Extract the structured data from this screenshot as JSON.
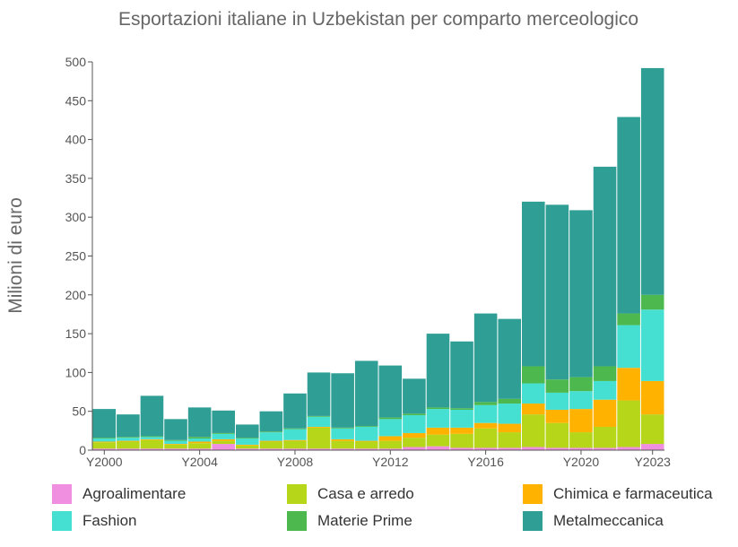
{
  "chart_data": {
    "type": "bar",
    "stacked": true,
    "title": "Esportazioni italiane in Uzbekistan per comparto merceologico",
    "xlabel": "",
    "ylabel": "Milioni di euro",
    "ylim": [
      0,
      500
    ],
    "yticks": [
      0,
      50,
      100,
      150,
      200,
      250,
      300,
      350,
      400,
      450,
      500
    ],
    "categories": [
      "Y2000",
      "Y2001",
      "Y2002",
      "Y2003",
      "Y2004",
      "Y2005",
      "Y2006",
      "Y2007",
      "Y2008",
      "Y2009",
      "Y2010",
      "Y2011",
      "Y2012",
      "Y2013",
      "Y2014",
      "Y2015",
      "Y2016",
      "Y2017",
      "Y2018",
      "Y2019",
      "Y2020",
      "Y2021",
      "Y2022",
      "Y2023"
    ],
    "xtick_labels": [
      "Y2000",
      "Y2004",
      "Y2008",
      "Y2012",
      "Y2016",
      "Y2020",
      "Y2023"
    ],
    "legend_position": "bottom",
    "series": [
      {
        "name": "Agroalimentare",
        "color": "#f08fe0",
        "values": [
          2,
          2,
          2,
          2,
          2,
          8,
          2,
          2,
          2,
          2,
          2,
          2,
          2,
          4,
          5,
          3,
          3,
          3,
          4,
          3,
          3,
          3,
          4,
          8
        ]
      },
      {
        "name": "Casa e arredo",
        "color": "#b5d619",
        "values": [
          8,
          9,
          11,
          5,
          7,
          4,
          4,
          9,
          10,
          27,
          10,
          9,
          10,
          12,
          15,
          18,
          25,
          20,
          42,
          32,
          20,
          27,
          60,
          38
        ]
      },
      {
        "name": "Chimica e farmaceutica",
        "color": "#ffb200",
        "values": [
          1,
          1,
          1,
          1,
          2,
          2,
          1,
          1,
          1,
          1,
          2,
          1,
          6,
          6,
          9,
          8,
          7,
          11,
          14,
          17,
          30,
          35,
          42,
          43
        ]
      },
      {
        "name": "Fashion",
        "color": "#46e0d3",
        "values": [
          4,
          4,
          3,
          4,
          4,
          7,
          8,
          11,
          14,
          13,
          14,
          18,
          22,
          23,
          24,
          23,
          23,
          26,
          26,
          22,
          23,
          24,
          55,
          92
        ]
      },
      {
        "name": "Materie Prime",
        "color": "#4db84d",
        "values": [
          1,
          1,
          1,
          1,
          2,
          1,
          1,
          1,
          1,
          1,
          1,
          1,
          2,
          2,
          2,
          2,
          4,
          6,
          22,
          17,
          18,
          19,
          15,
          19
        ]
      },
      {
        "name": "Metalmeccanica",
        "color": "#2f9e94",
        "values": [
          37,
          29,
          52,
          27,
          38,
          29,
          17,
          26,
          45,
          56,
          70,
          84,
          67,
          45,
          95,
          86,
          114,
          103,
          212,
          225,
          215,
          257,
          253,
          292
        ]
      }
    ]
  }
}
